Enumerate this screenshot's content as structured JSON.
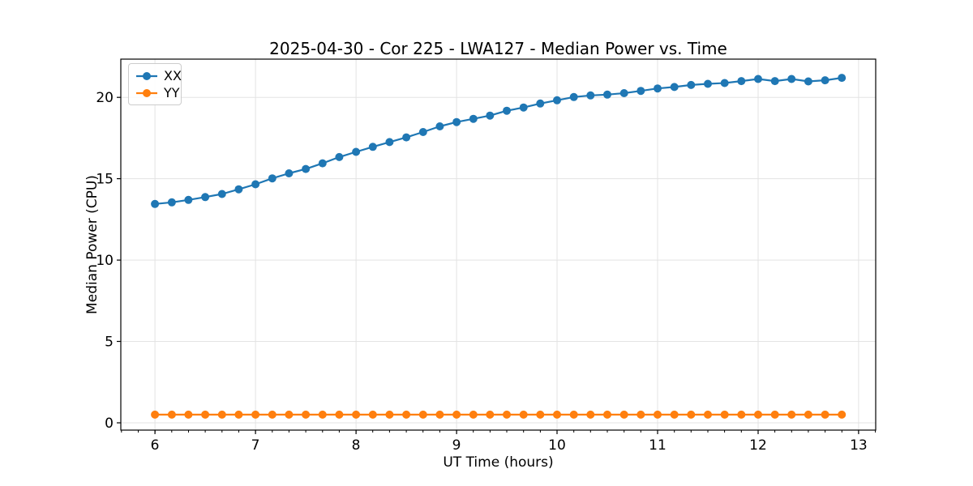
{
  "figure": {
    "background": "#ffffff",
    "frame_color": "#000000",
    "grid_color": "#e3e3e3"
  },
  "chart_data": {
    "type": "line",
    "title": "2025-04-30 - Cor 225 - LWA127 - Median Power vs. Time",
    "xlabel": "UT Time (hours)",
    "ylabel": "Median Power (CPU)",
    "xlim": [
      5.66,
      13.17
    ],
    "ylim": [
      -0.45,
      22.35
    ],
    "x_major_ticks": [
      6,
      7,
      8,
      9,
      10,
      11,
      12,
      13
    ],
    "x_minor_tick_step": 0.166667,
    "y_major_ticks": [
      0,
      5,
      10,
      15,
      20
    ],
    "grid": true,
    "legend_position": "upper-left",
    "x": [
      6.0,
      6.167,
      6.333,
      6.5,
      6.667,
      6.833,
      7.0,
      7.167,
      7.333,
      7.5,
      7.667,
      7.833,
      8.0,
      8.167,
      8.333,
      8.5,
      8.667,
      8.833,
      9.0,
      9.167,
      9.333,
      9.5,
      9.667,
      9.833,
      10.0,
      10.167,
      10.333,
      10.5,
      10.667,
      10.833,
      11.0,
      11.167,
      11.333,
      11.5,
      11.667,
      11.833,
      12.0,
      12.167,
      12.333,
      12.5,
      12.667,
      12.833
    ],
    "series": [
      {
        "name": "XX",
        "color": "#1f77b4",
        "values": [
          13.45,
          13.55,
          13.7,
          13.87,
          14.06,
          14.35,
          14.66,
          15.02,
          15.33,
          15.6,
          15.95,
          16.33,
          16.65,
          16.96,
          17.25,
          17.54,
          17.87,
          18.22,
          18.48,
          18.68,
          18.88,
          19.18,
          19.38,
          19.62,
          19.82,
          20.02,
          20.12,
          20.17,
          20.26,
          20.4,
          20.55,
          20.64,
          20.76,
          20.83,
          20.88,
          21.0,
          21.13,
          21.0,
          21.13,
          20.98,
          21.05,
          21.2
        ]
      },
      {
        "name": "YY",
        "color": "#ff7f0e",
        "values": [
          0.5,
          0.5,
          0.5,
          0.5,
          0.5,
          0.5,
          0.5,
          0.5,
          0.5,
          0.5,
          0.5,
          0.5,
          0.5,
          0.5,
          0.5,
          0.5,
          0.5,
          0.5,
          0.5,
          0.5,
          0.5,
          0.5,
          0.5,
          0.5,
          0.5,
          0.5,
          0.5,
          0.5,
          0.5,
          0.5,
          0.5,
          0.5,
          0.5,
          0.5,
          0.5,
          0.5,
          0.5,
          0.5,
          0.5,
          0.5,
          0.5,
          0.5
        ]
      }
    ]
  }
}
